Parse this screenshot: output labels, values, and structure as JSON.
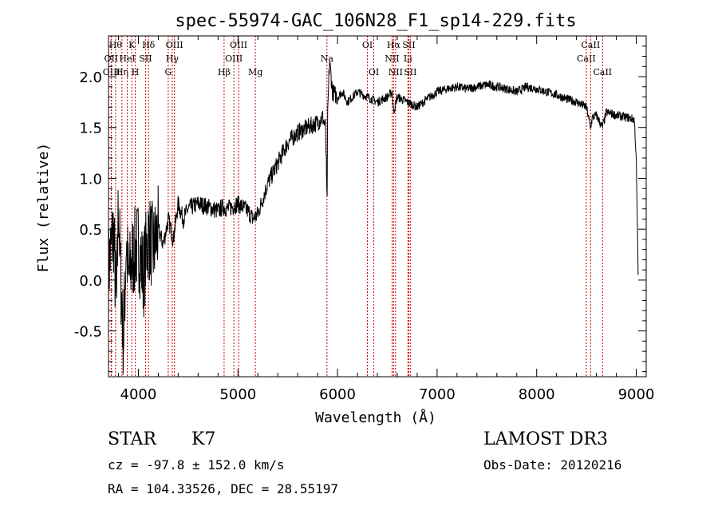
{
  "chart_data": {
    "type": "line",
    "title": "spec-55974-GAC_106N28_F1_sp14-229.fits",
    "xlabel": "Wavelength (Å)",
    "ylabel": "Flux (relative)",
    "xlim": [
      3700,
      9100
    ],
    "ylim": [
      -0.95,
      2.4
    ],
    "xticks": [
      4000,
      5000,
      6000,
      7000,
      8000,
      9000
    ],
    "xtick_labels": [
      "4000",
      "5000",
      "6000",
      "7000",
      "8000",
      "9000"
    ],
    "yticks": [
      -0.5,
      0.0,
      0.5,
      1.0,
      1.5,
      2.0
    ],
    "ytick_labels": [
      "-0.5",
      "0.0",
      "0.5",
      "1.0",
      "1.5",
      "2.0"
    ],
    "grid": false,
    "spectrum": {
      "x": [
        3700,
        3750,
        3780,
        3800,
        3820,
        3850,
        3880,
        3900,
        3950,
        4000,
        4050,
        4100,
        4150,
        4200,
        4250,
        4300,
        4350,
        4400,
        4450,
        4500,
        4600,
        4700,
        4800,
        4850,
        4900,
        5000,
        5100,
        5150,
        5200,
        5300,
        5400,
        5500,
        5600,
        5700,
        5800,
        5850,
        5880,
        5895,
        5900,
        5910,
        5920,
        5950,
        6000,
        6050,
        6100,
        6200,
        6300,
        6400,
        6500,
        6550,
        6563,
        6600,
        6700,
        6800,
        6900,
        7000,
        7100,
        7200,
        7300,
        7400,
        7500,
        7600,
        7700,
        7800,
        7900,
        8000,
        8100,
        8200,
        8300,
        8400,
        8500,
        8540,
        8560,
        8600,
        8660,
        8700,
        8800,
        8900,
        8980,
        9000,
        9020
      ],
      "y": [
        0.1,
        0.5,
        -0.3,
        0.8,
        0.1,
        -0.6,
        0.4,
        0.0,
        0.25,
        0.35,
        0.05,
        0.45,
        0.3,
        0.5,
        0.35,
        0.6,
        0.4,
        0.75,
        0.6,
        0.7,
        0.75,
        0.72,
        0.68,
        0.72,
        0.7,
        0.75,
        0.68,
        0.6,
        0.65,
        0.95,
        1.15,
        1.35,
        1.45,
        1.5,
        1.55,
        1.6,
        1.5,
        0.7,
        1.55,
        1.9,
        2.15,
        1.85,
        1.8,
        1.85,
        1.75,
        1.85,
        1.8,
        1.75,
        1.8,
        1.85,
        1.65,
        1.8,
        1.75,
        1.7,
        1.78,
        1.85,
        1.88,
        1.9,
        1.88,
        1.9,
        1.92,
        1.9,
        1.88,
        1.85,
        1.9,
        1.88,
        1.85,
        1.82,
        1.78,
        1.75,
        1.7,
        1.5,
        1.6,
        1.62,
        1.5,
        1.65,
        1.62,
        1.6,
        1.58,
        1.2,
        0.0
      ]
    },
    "lines": [
      {
        "wave": 3771,
        "label": "Hθ",
        "row": 0
      },
      {
        "wave": 3727,
        "label": "OII",
        "row": 1
      },
      {
        "wave": 3730,
        "label": "OIII",
        "row": 2
      },
      {
        "wave": 3835,
        "label": "Hη",
        "row": 2
      },
      {
        "wave": 3889,
        "label": "HeI",
        "row": 1
      },
      {
        "wave": 3934,
        "label": "K",
        "row": 0
      },
      {
        "wave": 3969,
        "label": "H",
        "row": 2
      },
      {
        "wave": 4072,
        "label": "SII",
        "row": 1
      },
      {
        "wave": 4102,
        "label": "Hδ",
        "row": 0
      },
      {
        "wave": 4300,
        "label": "G",
        "row": 2
      },
      {
        "wave": 4340,
        "label": "Hγ",
        "row": 1
      },
      {
        "wave": 4363,
        "label": "OIII",
        "row": 0
      },
      {
        "wave": 4861,
        "label": "Hβ",
        "row": 2
      },
      {
        "wave": 4959,
        "label": "OIII",
        "row": 1
      },
      {
        "wave": 5007,
        "label": "OIII",
        "row": 0
      },
      {
        "wave": 5175,
        "label": "Mg",
        "row": 2
      },
      {
        "wave": 5894,
        "label": "Na",
        "row": 1
      },
      {
        "wave": 6300,
        "label": "OI",
        "row": 0
      },
      {
        "wave": 6364,
        "label": "OI",
        "row": 2
      },
      {
        "wave": 6548,
        "label": "NII",
        "row": 1
      },
      {
        "wave": 6563,
        "label": "Hα",
        "row": 0
      },
      {
        "wave": 6583,
        "label": "NII",
        "row": 2
      },
      {
        "wave": 6707,
        "label": "Li",
        "row": 1
      },
      {
        "wave": 6716,
        "label": "SII",
        "row": 0
      },
      {
        "wave": 6731,
        "label": "SII",
        "row": 2
      },
      {
        "wave": 8498,
        "label": "CaII",
        "row": 1
      },
      {
        "wave": 8542,
        "label": "CaII",
        "row": 0
      },
      {
        "wave": 8662,
        "label": "CaII",
        "row": 2
      }
    ]
  },
  "info": {
    "class": "STAR",
    "subclass": "K7",
    "cz": "cz = -97.8 ± 152.0 km/s",
    "coords": "RA = 104.33526, DEC =  28.55197",
    "survey": "LAMOST DR3",
    "obs_date": "Obs-Date: 20120216"
  }
}
